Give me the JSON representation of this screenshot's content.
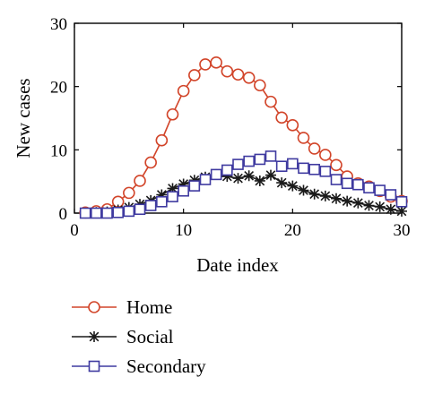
{
  "chart_data": {
    "type": "line",
    "xlabel": "Date index",
    "ylabel": "New cases",
    "xlim": [
      0,
      30
    ],
    "ylim": [
      0,
      30
    ],
    "xticks": [
      0,
      10,
      20,
      30
    ],
    "yticks": [
      0,
      10,
      20,
      30
    ],
    "grid": false,
    "legend_position": "bottom",
    "x": [
      1,
      2,
      3,
      4,
      5,
      6,
      7,
      8,
      9,
      10,
      11,
      12,
      13,
      14,
      15,
      16,
      17,
      18,
      19,
      20,
      21,
      22,
      23,
      24,
      25,
      26,
      27,
      28,
      29,
      30
    ],
    "series": [
      {
        "name": "Home",
        "marker": "circle",
        "color": "#d2452a",
        "values": [
          0.1,
          0.3,
          0.6,
          1.8,
          3.2,
          5.1,
          8.0,
          11.5,
          15.6,
          19.3,
          21.8,
          23.5,
          23.8,
          22.4,
          21.9,
          21.4,
          20.2,
          17.6,
          15.1,
          13.9,
          11.9,
          10.2,
          9.2,
          7.6,
          5.8,
          4.7,
          4.2,
          3.5,
          2.6,
          1.9
        ]
      },
      {
        "name": "Social",
        "marker": "star",
        "color": "#1a1a1a",
        "values": [
          0,
          0.1,
          0.2,
          0.5,
          0.9,
          1.4,
          2.0,
          2.9,
          3.9,
          4.6,
          5.2,
          5.7,
          6.1,
          5.8,
          5.5,
          5.9,
          5.1,
          6.0,
          4.8,
          4.3,
          3.6,
          3.0,
          2.7,
          2.3,
          1.9,
          1.6,
          1.2,
          1.0,
          0.6,
          0.3
        ]
      },
      {
        "name": "Secondary",
        "marker": "square",
        "color": "#3f3aa0",
        "values": [
          0,
          0,
          0,
          0.1,
          0.3,
          0.6,
          1.2,
          1.8,
          2.6,
          3.5,
          4.3,
          5.3,
          6.1,
          6.8,
          7.7,
          8.2,
          8.5,
          9.0,
          7.4,
          7.8,
          7.1,
          6.9,
          6.6,
          5.3,
          4.7,
          4.5,
          4.0,
          3.6,
          2.9,
          1.8
        ]
      }
    ]
  }
}
